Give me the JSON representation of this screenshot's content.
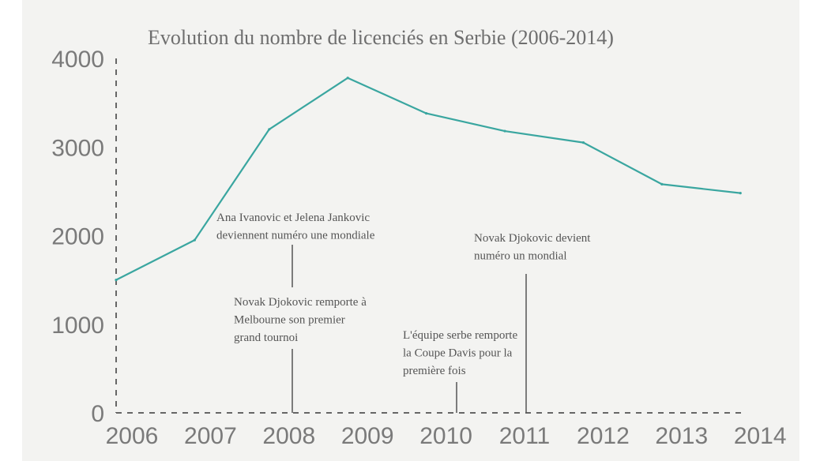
{
  "chart_data": {
    "type": "line",
    "title": "Evolution du nombre de licenciés en Serbie (2006-2014)",
    "x": [
      "2006",
      "2007",
      "2008",
      "2009",
      "2010",
      "2011",
      "2012",
      "2013",
      "2014"
    ],
    "ylim": [
      0,
      4000
    ],
    "yticks": [
      "0",
      "1000",
      "2000",
      "3000",
      "4000"
    ],
    "series": [
      {
        "points": [
          {
            "x": 2006,
            "y": 1500
          },
          {
            "x": 2007,
            "y": 1950
          },
          {
            "x": 2007.95,
            "y": 3200
          },
          {
            "x": 2008.95,
            "y": 3780
          },
          {
            "x": 2009.95,
            "y": 3380
          },
          {
            "x": 2010.95,
            "y": 3180
          },
          {
            "x": 2011.95,
            "y": 3050
          },
          {
            "x": 2012.95,
            "y": 2580
          },
          {
            "x": 2013.95,
            "y": 2480
          }
        ]
      }
    ],
    "line_color": "#3aa6a0",
    "grid": false,
    "annotations": [
      {
        "x": 2008,
        "lines": [
          "Ana Ivanovic et Jelena Jankovic",
          "deviennent numéro une mondiale"
        ]
      },
      {
        "x": 2008,
        "lines": [
          "Novak Djokovic remporte à",
          "Melbourne son premier",
          "grand tournoi"
        ]
      },
      {
        "x": 2010.15,
        "lines": [
          "L'équipe serbe remporte",
          "la Coupe Davis pour la",
          "première fois"
        ]
      },
      {
        "x": 2011.05,
        "lines": [
          "Novak Djokovic devient",
          "numéro un mondial"
        ]
      }
    ]
  }
}
